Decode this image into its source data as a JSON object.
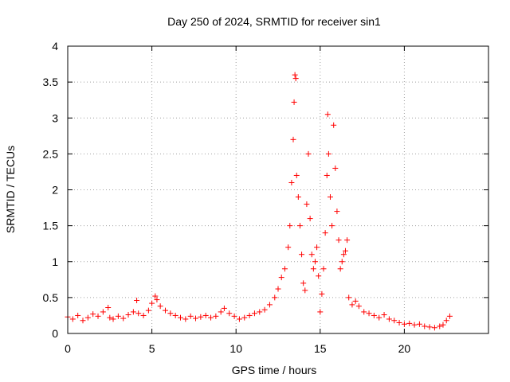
{
  "chart_data": {
    "type": "scatter",
    "title": "Day 250 of 2024, SRMTID for receiver sin1",
    "xlabel": "GPS time / hours",
    "ylabel": "SRMTID / TECUs",
    "xlim": [
      0,
      25
    ],
    "ylim": [
      0,
      4
    ],
    "xticks": [
      0,
      5,
      10,
      15,
      20
    ],
    "xtick_labels": [
      "0",
      "5",
      "10",
      "15",
      "20"
    ],
    "yticks": [
      0,
      0.5,
      1,
      1.5,
      2,
      2.5,
      3,
      3.5,
      4
    ],
    "ytick_labels": [
      "0",
      "0.5",
      "1",
      "1.5",
      "2",
      "2.5",
      "3",
      "3.5",
      "4"
    ],
    "grid": true,
    "marker": "+",
    "color": "#ff0000",
    "series": [
      {
        "name": "sin1",
        "x": [
          0.0,
          0.3,
          0.6,
          0.9,
          1.2,
          1.5,
          1.8,
          2.1,
          2.4,
          2.5,
          2.7,
          3.0,
          3.3,
          3.6,
          3.9,
          4.1,
          4.2,
          4.5,
          4.8,
          5.0,
          5.2,
          5.3,
          5.5,
          5.8,
          6.1,
          6.4,
          6.7,
          7.0,
          7.3,
          7.6,
          7.9,
          8.2,
          8.5,
          8.8,
          9.1,
          9.3,
          9.6,
          9.9,
          10.2,
          10.5,
          10.8,
          11.1,
          11.4,
          11.7,
          12.0,
          12.3,
          12.5,
          12.7,
          12.9,
          13.1,
          13.2,
          13.3,
          13.4,
          13.45,
          13.5,
          13.55,
          13.6,
          13.7,
          13.8,
          13.9,
          14.0,
          14.1,
          14.2,
          14.3,
          14.4,
          14.5,
          14.6,
          14.7,
          14.8,
          14.9,
          15.0,
          15.1,
          15.2,
          15.3,
          15.4,
          15.45,
          15.5,
          15.6,
          15.7,
          15.8,
          15.9,
          16.0,
          16.1,
          16.2,
          16.3,
          16.4,
          16.5,
          16.6,
          16.7,
          16.9,
          17.1,
          17.3,
          17.6,
          17.9,
          18.2,
          18.5,
          18.8,
          19.1,
          19.4,
          19.7,
          20.0,
          20.3,
          20.6,
          20.9,
          21.2,
          21.5,
          21.8,
          22.1,
          22.3,
          22.5,
          22.7
        ],
        "y": [
          0.23,
          0.2,
          0.25,
          0.18,
          0.22,
          0.27,
          0.24,
          0.3,
          0.36,
          0.22,
          0.2,
          0.24,
          0.21,
          0.26,
          0.3,
          0.46,
          0.28,
          0.25,
          0.32,
          0.42,
          0.52,
          0.47,
          0.38,
          0.32,
          0.28,
          0.25,
          0.22,
          0.2,
          0.24,
          0.21,
          0.23,
          0.25,
          0.22,
          0.24,
          0.3,
          0.35,
          0.28,
          0.24,
          0.2,
          0.22,
          0.25,
          0.28,
          0.3,
          0.33,
          0.4,
          0.5,
          0.62,
          0.78,
          0.9,
          1.2,
          1.5,
          2.1,
          2.7,
          3.22,
          3.6,
          3.55,
          2.2,
          1.9,
          1.5,
          1.1,
          0.7,
          0.6,
          1.8,
          2.5,
          1.6,
          1.1,
          0.9,
          1.0,
          1.2,
          0.8,
          0.3,
          0.55,
          0.9,
          1.4,
          2.2,
          3.05,
          2.5,
          1.9,
          1.5,
          2.9,
          2.3,
          1.7,
          1.3,
          0.9,
          1.0,
          1.1,
          1.15,
          1.3,
          0.5,
          0.4,
          0.45,
          0.38,
          0.3,
          0.28,
          0.25,
          0.22,
          0.26,
          0.2,
          0.18,
          0.15,
          0.13,
          0.14,
          0.12,
          0.13,
          0.1,
          0.09,
          0.08,
          0.1,
          0.12,
          0.18,
          0.24
        ]
      }
    ]
  }
}
